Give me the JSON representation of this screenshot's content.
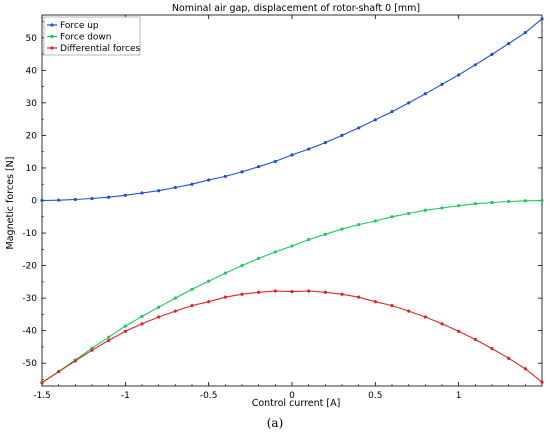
{
  "caption": "(a)",
  "chart_data": {
    "type": "line",
    "title": "Nominal air gap, displacement of rotor-shaft 0 [mm]",
    "xlabel": "Control current [A]",
    "ylabel": "Magnetic forces [N]",
    "xlim": [
      -1.5,
      1.5
    ],
    "ylim": [
      -57,
      57
    ],
    "xticks": [
      -1.5,
      -1,
      -0.5,
      0,
      0.5,
      1
    ],
    "xtick_labels": [
      "-1.5",
      "-1",
      "-0.5",
      "0",
      "0.5",
      "1"
    ],
    "yticks": [
      -50,
      -40,
      -30,
      -20,
      -10,
      0,
      10,
      20,
      30,
      40,
      50
    ],
    "ytick_labels": [
      "-50",
      "-40",
      "-30",
      "-20",
      "-10",
      "0",
      "10",
      "20",
      "30",
      "40",
      "50"
    ],
    "grid": false,
    "legend_position": "top-left",
    "x": [
      -1.5,
      -1.4,
      -1.3,
      -1.2,
      -1.1,
      -1.0,
      -0.9,
      -0.8,
      -0.7,
      -0.6,
      -0.5,
      -0.4,
      -0.3,
      -0.2,
      -0.1,
      0.0,
      0.1,
      0.2,
      0.3,
      0.4,
      0.5,
      0.6,
      0.7,
      0.8,
      0.9,
      1.0,
      1.1,
      1.2,
      1.3,
      1.4,
      1.5
    ],
    "series": [
      {
        "name": "Force up",
        "color": "#1f4fd8",
        "values": [
          0.0,
          0.1,
          0.3,
          0.6,
          1.0,
          1.6,
          2.3,
          3.0,
          4.0,
          5.0,
          6.3,
          7.4,
          8.8,
          10.4,
          12.0,
          14.0,
          15.8,
          17.8,
          20.0,
          22.3,
          24.8,
          27.3,
          30.0,
          32.8,
          35.7,
          38.6,
          41.7,
          44.9,
          48.2,
          51.6,
          55.8
        ]
      },
      {
        "name": "Force down",
        "color": "#22c55e",
        "values": [
          -56.0,
          -52.5,
          -49.0,
          -45.4,
          -42.0,
          -38.6,
          -35.6,
          -32.8,
          -30.0,
          -27.3,
          -24.8,
          -22.3,
          -20.0,
          -17.8,
          -15.8,
          -14.0,
          -12.0,
          -10.4,
          -8.8,
          -7.4,
          -6.3,
          -5.0,
          -4.0,
          -3.0,
          -2.3,
          -1.6,
          -1.0,
          -0.6,
          -0.3,
          -0.1,
          0.0
        ]
      },
      {
        "name": "Differential forces",
        "color": "#dc2626",
        "values": [
          -56.0,
          -52.6,
          -49.3,
          -46.0,
          -43.0,
          -40.2,
          -37.9,
          -35.8,
          -34.0,
          -32.3,
          -31.1,
          -29.7,
          -28.8,
          -28.2,
          -27.8,
          -28.0,
          -27.8,
          -28.2,
          -28.8,
          -29.7,
          -31.1,
          -32.3,
          -34.0,
          -35.8,
          -37.9,
          -40.2,
          -42.7,
          -45.5,
          -48.5,
          -51.7,
          -55.8
        ]
      }
    ]
  }
}
